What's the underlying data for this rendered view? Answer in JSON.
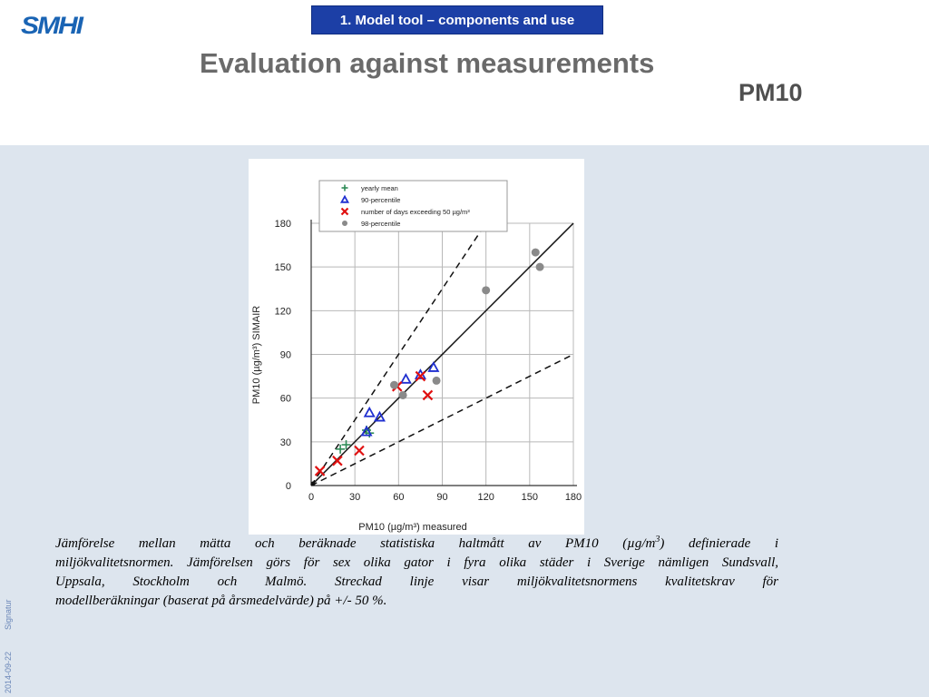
{
  "header": {
    "logo_text": "SMHI",
    "section_tab": "1. Model tool – components and use",
    "title": "Evaluation against measurements",
    "subtitle": "PM10"
  },
  "caption": {
    "lines": [
      "Jämförelse mellan mätta och beräknade statistiska haltmått av PM10 (µg/m",
      "miljökvalitetsnormen. Jämförelsen görs för sex olika gator i fyra olika städer i Sverige nämligen Sundsvall,",
      "Uppsala, Stockholm och Malmö. Streckad linje visar miljökvalitetsnormens kvalitetskrav för",
      "modellberäkningar (baserat på årsmedelvärde) på +/- 50 %."
    ],
    "line1_superscript": "3",
    "line1_tail": ") definierade i"
  },
  "sidebar": {
    "signature": "Signatur",
    "date": "2014-09-22"
  },
  "colors": {
    "logo": "#1a64b4",
    "tab_background": "#1c3fa6",
    "main_background": "#dde5ee",
    "yearly_mean": "#2e8b57",
    "percentile_90": "#1f2fd0",
    "days_exceeding": "#e01010",
    "percentile_98": "#8a8a8a"
  },
  "chart_data": {
    "type": "scatter",
    "xlabel": "PM10 (µg/m³) measured",
    "ylabel": "PM10 (µg/m³) SIMAIR",
    "xlim": [
      0,
      180
    ],
    "ylim": [
      0,
      180
    ],
    "xticks": [
      0,
      30,
      60,
      90,
      120,
      150,
      180
    ],
    "yticks": [
      0,
      30,
      60,
      90,
      120,
      150,
      180
    ],
    "grid": true,
    "legend_position": "top",
    "series": [
      {
        "name": "yearly mean",
        "marker": "plus",
        "points": [
          [
            20,
            25
          ],
          [
            24,
            28
          ],
          [
            38,
            38
          ],
          [
            40,
            36
          ]
        ]
      },
      {
        "name": "90-percentile",
        "marker": "triangle",
        "points": [
          [
            38,
            37
          ],
          [
            40,
            50
          ],
          [
            47,
            47
          ],
          [
            65,
            73
          ],
          [
            75,
            76
          ],
          [
            84,
            81
          ]
        ]
      },
      {
        "name": "number of days exceeding 50 µg/m³",
        "marker": "x",
        "points": [
          [
            6,
            10
          ],
          [
            18,
            17
          ],
          [
            33,
            24
          ],
          [
            59,
            68
          ],
          [
            75,
            75
          ],
          [
            80,
            62
          ]
        ]
      },
      {
        "name": "98-percentile",
        "marker": "circle",
        "points": [
          [
            57,
            69
          ],
          [
            63,
            62
          ],
          [
            86,
            72
          ],
          [
            120,
            134
          ],
          [
            154,
            160
          ],
          [
            157,
            150
          ]
        ]
      }
    ],
    "reference_lines": [
      {
        "style": "solid",
        "slope": 1.0
      },
      {
        "style": "dashed",
        "slope": 1.5
      },
      {
        "style": "dashed",
        "slope": 0.5
      }
    ]
  }
}
